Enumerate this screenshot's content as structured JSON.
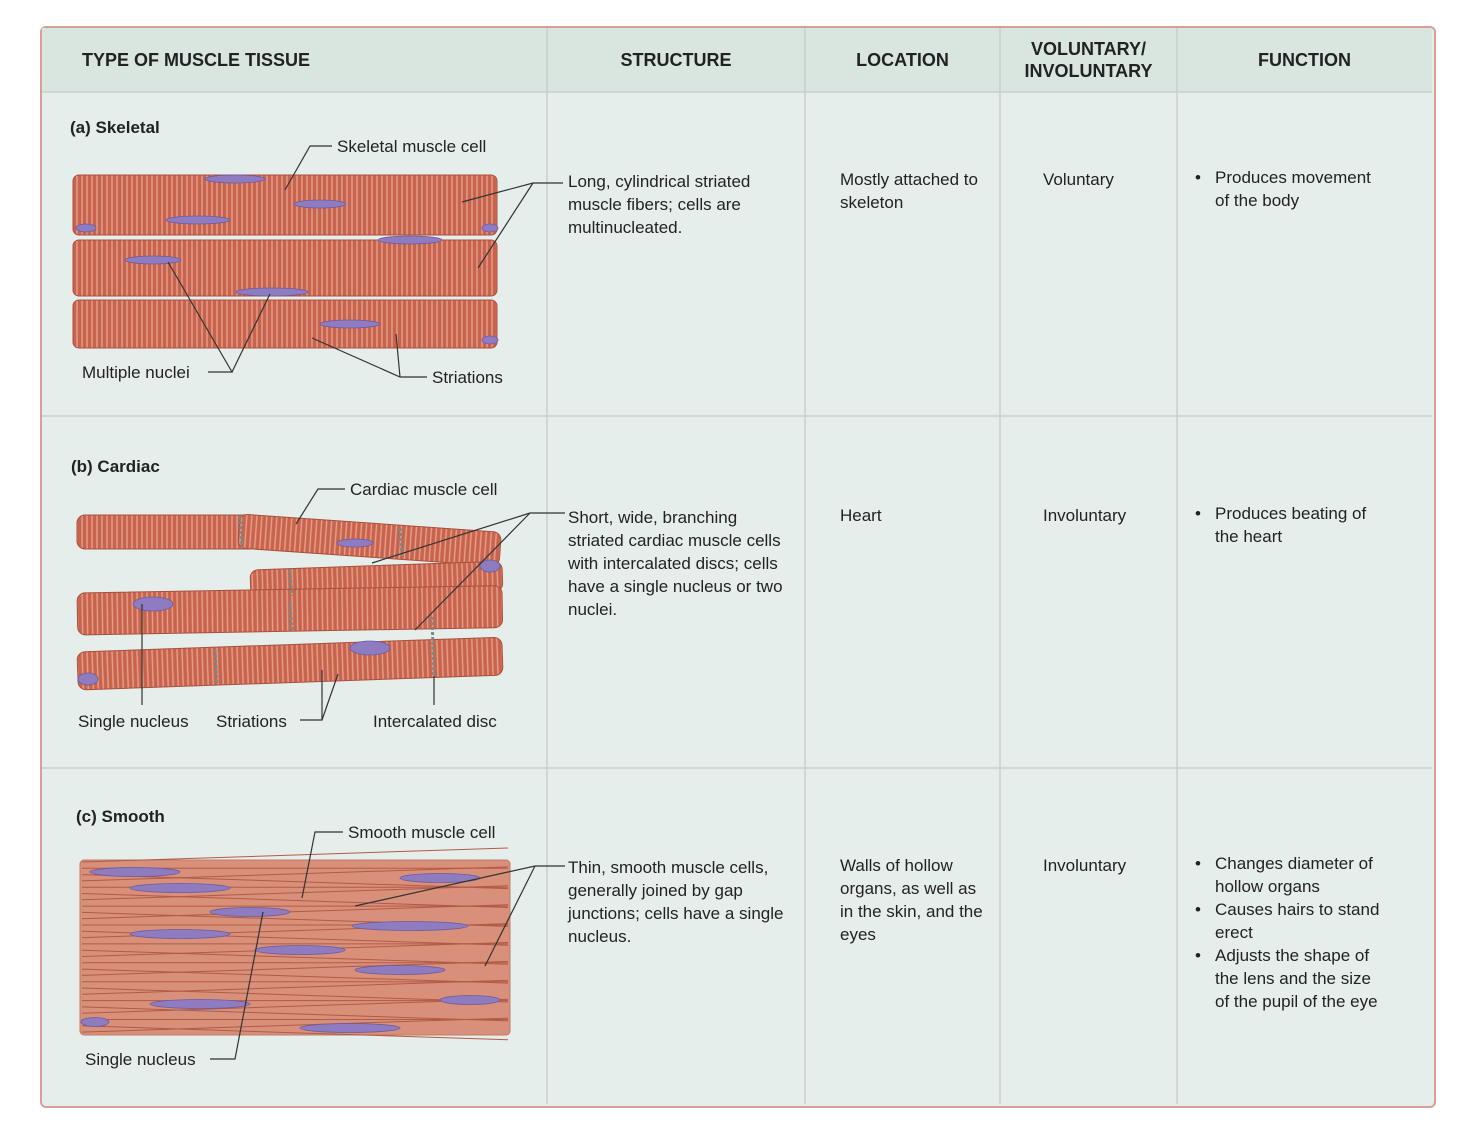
{
  "table": {
    "headers": [
      "TYPE OF MUSCLE TISSUE",
      "STRUCTURE",
      "LOCATION",
      "VOLUNTARY/ INVOLUNTARY",
      "FUNCTION"
    ],
    "rows": [
      {
        "type": "(a) Skeletal",
        "labels": [
          "Skeletal muscle cell",
          "Multiple nuclei",
          "Striations"
        ],
        "structure": "Long, cylindrical striated muscle fibers; cells are multinucleated.",
        "location": "Mostly attached to skeleton",
        "voluntary": "Voluntary",
        "function": [
          "Produces movement of the body"
        ]
      },
      {
        "type": "(b) Cardiac",
        "labels": [
          "Cardiac muscle cell",
          "Single nucleus",
          "Striations",
          "Intercalated disc"
        ],
        "structure": "Short, wide, branching striated cardiac muscle cells with intercalated discs; cells have a single nucleus or two nuclei.",
        "location": "Heart",
        "voluntary": "Involuntary",
        "function": [
          "Produces beating of the heart"
        ]
      },
      {
        "type": "(c) Smooth",
        "labels": [
          "Smooth muscle cell",
          "Single nucleus"
        ],
        "structure": "Thin, smooth muscle cells, generally joined by gap junctions; cells have a single nucleus.",
        "location": "Walls of hollow organs, as well as in the skin, and the eyes",
        "voluntary": "Involuntary",
        "function": [
          "Changes diameter of hollow organs",
          "Causes hairs to stand erect",
          "Adjusts the shape of the lens and the size of the pupil of the eye"
        ]
      }
    ]
  }
}
